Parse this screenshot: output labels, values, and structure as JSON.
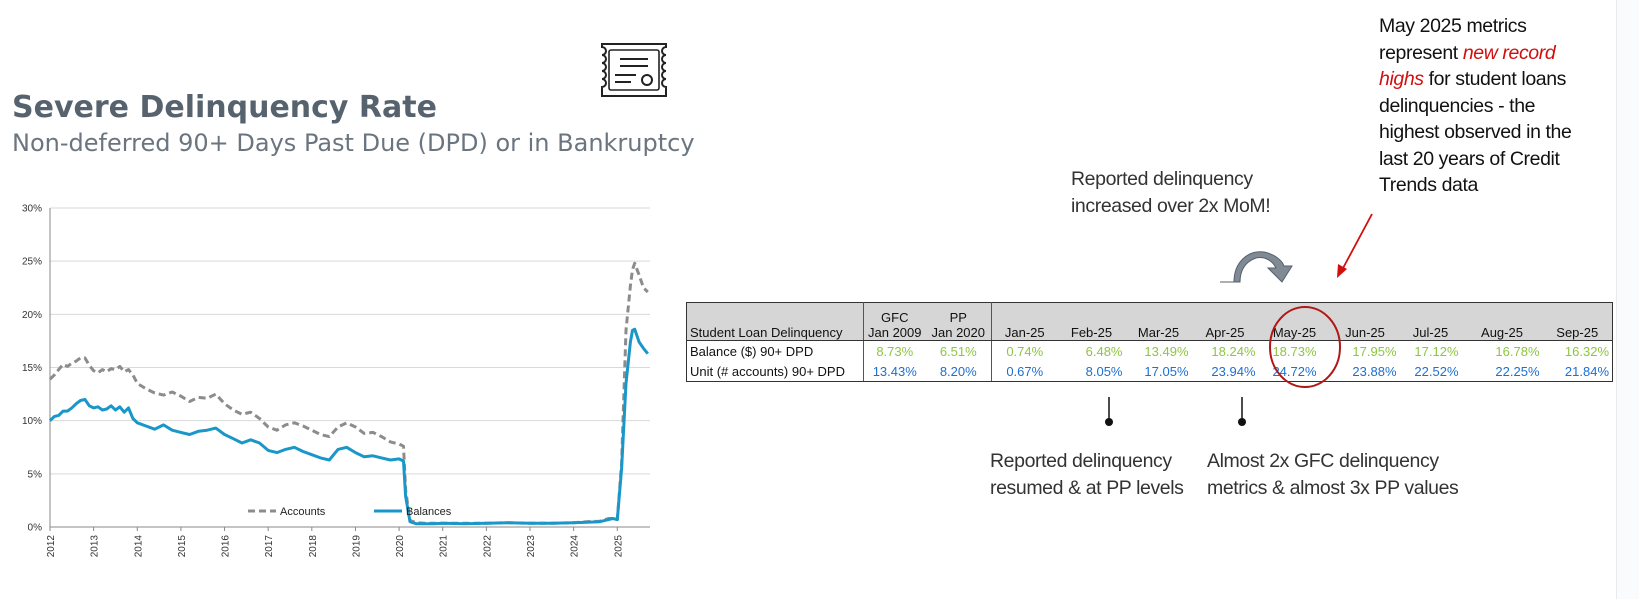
{
  "title": "Severe Delinquency Rate",
  "subtitle": "Non-deferred 90+ Days Past Due (DPD) or in Bankruptcy",
  "icons": {
    "certificate": "certificate-icon",
    "curved_arrow": "curved-arrow-icon",
    "red_arrow": "red-arrow-icon"
  },
  "colors": {
    "accounts": "#8c8c8c",
    "balances": "#1a97c9",
    "green": "#8cc63e",
    "blue": "#1d6fd1",
    "highlight": "#b01818"
  },
  "chart_data": {
    "type": "line",
    "ylim": [
      0,
      30
    ],
    "yticks": [
      "0%",
      "5%",
      "10%",
      "15%",
      "20%",
      "25%",
      "30%"
    ],
    "xticks": [
      "2012",
      "2013",
      "2014",
      "2015",
      "2016",
      "2017",
      "2018",
      "2019",
      "2020",
      "2021",
      "2022",
      "2023",
      "2024",
      "2025"
    ],
    "xlim": [
      2012.0,
      2025.75
    ],
    "grid": true,
    "legend_position": "bottom",
    "series": [
      {
        "name": "Accounts",
        "style": "dashed",
        "x": [
          2012.0,
          2012.1,
          2012.2,
          2012.3,
          2012.4,
          2012.5,
          2012.6,
          2012.7,
          2012.8,
          2012.9,
          2013.0,
          2013.1,
          2013.2,
          2013.3,
          2013.4,
          2013.5,
          2013.6,
          2013.7,
          2013.8,
          2013.9,
          2014.0,
          2014.2,
          2014.4,
          2014.6,
          2014.8,
          2015.0,
          2015.2,
          2015.4,
          2015.6,
          2015.8,
          2016.0,
          2016.2,
          2016.4,
          2016.6,
          2016.8,
          2017.0,
          2017.2,
          2017.4,
          2017.6,
          2017.8,
          2018.0,
          2018.2,
          2018.4,
          2018.6,
          2018.8,
          2019.0,
          2019.2,
          2019.4,
          2019.6,
          2019.8,
          2020.0,
          2020.1,
          2020.15,
          2020.25,
          2020.4,
          2020.6,
          2020.8,
          2021.0,
          2021.5,
          2022.0,
          2022.5,
          2023.0,
          2023.5,
          2024.0,
          2024.3,
          2024.6,
          2024.8,
          2024.9,
          2025.0,
          2025.1,
          2025.2,
          2025.3,
          2025.35,
          2025.4,
          2025.5,
          2025.6,
          2025.7
        ],
        "y": [
          13.9,
          14.3,
          14.8,
          15.3,
          15.1,
          15.4,
          15.6,
          15.9,
          15.9,
          15.2,
          14.7,
          14.5,
          14.8,
          14.6,
          14.9,
          14.8,
          15.1,
          14.6,
          14.8,
          14.3,
          13.5,
          13.0,
          12.6,
          12.4,
          12.7,
          12.3,
          11.8,
          12.2,
          12.1,
          12.5,
          11.6,
          11.0,
          10.6,
          10.8,
          10.2,
          9.4,
          9.1,
          9.6,
          9.8,
          9.5,
          9.1,
          8.7,
          8.5,
          9.4,
          9.8,
          9.4,
          8.8,
          8.9,
          8.5,
          8.0,
          7.8,
          7.6,
          3.5,
          0.6,
          0.4,
          0.35,
          0.35,
          0.35,
          0.35,
          0.35,
          0.4,
          0.35,
          0.35,
          0.4,
          0.5,
          0.55,
          0.8,
          0.8,
          0.7,
          6.0,
          18.5,
          22.7,
          24.2,
          24.8,
          23.7,
          22.5,
          22.1
        ]
      },
      {
        "name": "Balances",
        "style": "solid",
        "x": [
          2012.0,
          2012.1,
          2012.2,
          2012.3,
          2012.4,
          2012.5,
          2012.6,
          2012.7,
          2012.8,
          2012.9,
          2013.0,
          2013.1,
          2013.2,
          2013.3,
          2013.4,
          2013.5,
          2013.6,
          2013.7,
          2013.8,
          2013.9,
          2014.0,
          2014.2,
          2014.4,
          2014.6,
          2014.8,
          2015.0,
          2015.2,
          2015.4,
          2015.6,
          2015.8,
          2016.0,
          2016.2,
          2016.4,
          2016.6,
          2016.8,
          2017.0,
          2017.2,
          2017.4,
          2017.6,
          2017.8,
          2018.0,
          2018.2,
          2018.4,
          2018.6,
          2018.8,
          2019.0,
          2019.2,
          2019.4,
          2019.6,
          2019.8,
          2020.0,
          2020.1,
          2020.15,
          2020.25,
          2020.4,
          2020.6,
          2020.8,
          2021.0,
          2021.5,
          2022.0,
          2022.5,
          2023.0,
          2023.5,
          2024.0,
          2024.3,
          2024.6,
          2024.8,
          2024.9,
          2025.0,
          2025.1,
          2025.2,
          2025.3,
          2025.35,
          2025.4,
          2025.5,
          2025.6,
          2025.7
        ],
        "y": [
          10.0,
          10.4,
          10.5,
          10.9,
          10.9,
          11.2,
          11.6,
          11.9,
          12.0,
          11.4,
          11.2,
          11.3,
          11.0,
          11.1,
          11.4,
          11.0,
          11.3,
          10.8,
          11.2,
          10.2,
          9.8,
          9.5,
          9.2,
          9.6,
          9.1,
          8.9,
          8.7,
          9.0,
          9.1,
          9.3,
          8.7,
          8.3,
          7.9,
          8.2,
          7.9,
          7.2,
          7.0,
          7.3,
          7.5,
          7.1,
          6.8,
          6.5,
          6.3,
          7.3,
          7.5,
          7.0,
          6.6,
          6.7,
          6.5,
          6.3,
          6.4,
          6.2,
          2.9,
          0.5,
          0.3,
          0.3,
          0.3,
          0.35,
          0.3,
          0.35,
          0.4,
          0.35,
          0.35,
          0.4,
          0.45,
          0.5,
          0.7,
          0.8,
          0.7,
          5.5,
          13.5,
          17.4,
          18.5,
          18.6,
          17.4,
          16.8,
          16.3
        ]
      }
    ]
  },
  "table": {
    "header": {
      "first": "Student Loan Delinquency",
      "cols": [
        {
          "top": "GFC",
          "bottom": "Jan 2009"
        },
        {
          "top": "PP",
          "bottom": "Jan 2020"
        },
        {
          "top": "",
          "bottom": "Jan-25"
        },
        {
          "top": "",
          "bottom": "Feb-25"
        },
        {
          "top": "",
          "bottom": "Mar-25"
        },
        {
          "top": "",
          "bottom": "Apr-25"
        },
        {
          "top": "",
          "bottom": "May-25"
        },
        {
          "top": "",
          "bottom": "Jun-25"
        },
        {
          "top": "",
          "bottom": "Jul-25"
        },
        {
          "top": "",
          "bottom": "Aug-25"
        },
        {
          "top": "",
          "bottom": "Sep-25"
        }
      ]
    },
    "rows": [
      {
        "label": "Balance ($) 90+ DPD",
        "values": [
          "8.73%",
          "6.51%",
          "0.74%",
          "6.48%",
          "13.49%",
          "18.24%",
          "18.73%",
          "17.95%",
          "17.12%",
          "16.78%",
          "16.32%"
        ]
      },
      {
        "label": "Unit (# accounts) 90+ DPD",
        "values": [
          "13.43%",
          "8.20%",
          "0.67%",
          "8.05%",
          "17.05%",
          "23.94%",
          "24.72%",
          "23.88%",
          "22.52%",
          "22.25%",
          "21.84%"
        ]
      }
    ]
  },
  "callouts": {
    "mom": {
      "line1": "Reported delinquency",
      "line2": "increased over 2x MoM!"
    },
    "record": {
      "line1": "May 2025 metrics",
      "line2_pre": "represent ",
      "line2_red": "new record",
      "line3_red": "highs",
      "line3_post": " for student loans",
      "line4": "delinquencies - the",
      "line5": "highest observed in the",
      "line6": "last 20 years of Credit",
      "line7": "Trends data"
    },
    "resumed": {
      "line1": "Reported delinquency",
      "line2": "resumed & at PP levels"
    },
    "gfc": {
      "line1": "Almost 2x GFC delinquency",
      "line2": "metrics & almost 3x PP values"
    }
  }
}
